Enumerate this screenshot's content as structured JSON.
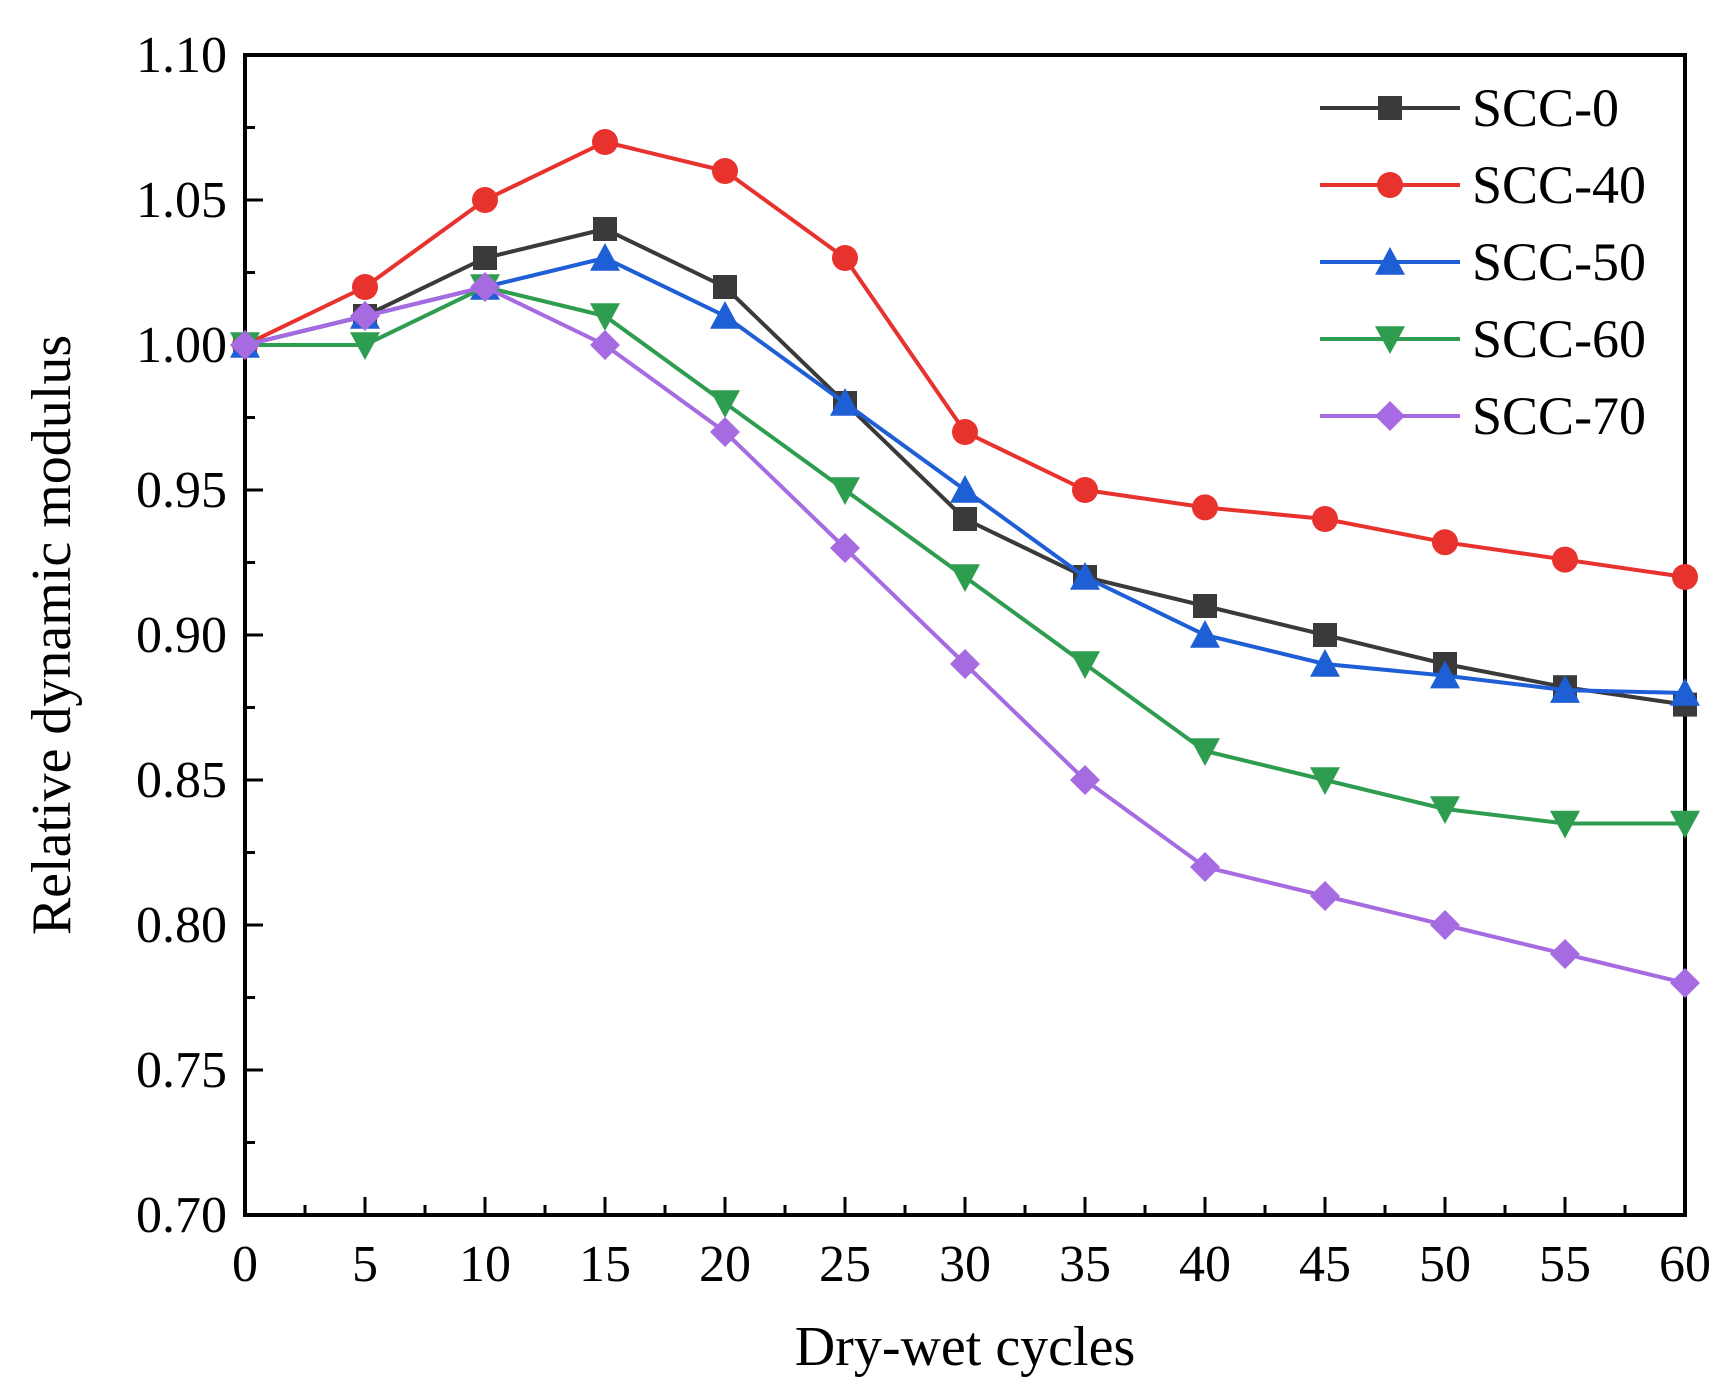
{
  "chart_data": {
    "type": "line",
    "title": "",
    "xlabel": "Dry-wet cycles",
    "ylabel": "Relative dynamic modulus",
    "xlim": [
      0,
      60
    ],
    "ylim": [
      0.7,
      1.1
    ],
    "x_ticks": [
      "0",
      "5",
      "10",
      "15",
      "20",
      "25",
      "30",
      "35",
      "40",
      "45",
      "50",
      "55",
      "60"
    ],
    "y_ticks": [
      "0.70",
      "0.75",
      "0.80",
      "0.85",
      "0.90",
      "0.95",
      "1.00",
      "1.05",
      "1.10"
    ],
    "legend_position": "top-right",
    "grid": false,
    "x": [
      0,
      5,
      10,
      15,
      20,
      25,
      30,
      35,
      40,
      45,
      50,
      55,
      60
    ],
    "series": [
      {
        "name": "SCC-0",
        "color": "#3a3a3a",
        "marker": "square",
        "values": [
          1.0,
          1.01,
          1.03,
          1.04,
          1.02,
          0.98,
          0.94,
          0.92,
          0.91,
          0.9,
          0.89,
          0.882,
          0.876
        ]
      },
      {
        "name": "SCC-40",
        "color": "#e8322e",
        "marker": "circle",
        "values": [
          1.0,
          1.02,
          1.05,
          1.07,
          1.06,
          1.03,
          0.97,
          0.95,
          0.944,
          0.94,
          0.932,
          0.926,
          0.92
        ]
      },
      {
        "name": "SCC-50",
        "color": "#1f5fd6",
        "marker": "triangle-up",
        "values": [
          1.0,
          1.01,
          1.02,
          1.03,
          1.01,
          0.98,
          0.95,
          0.92,
          0.9,
          0.89,
          0.886,
          0.881,
          0.88
        ]
      },
      {
        "name": "SCC-60",
        "color": "#2e9d4f",
        "marker": "triangle-down",
        "values": [
          1.0,
          1.0,
          1.02,
          1.01,
          0.98,
          0.95,
          0.92,
          0.89,
          0.86,
          0.85,
          0.84,
          0.835,
          0.835
        ]
      },
      {
        "name": "SCC-70",
        "color": "#a66be0",
        "marker": "diamond",
        "values": [
          1.0,
          1.01,
          1.02,
          1.0,
          0.97,
          0.93,
          0.89,
          0.85,
          0.82,
          0.81,
          0.8,
          0.79,
          0.78
        ]
      }
    ]
  }
}
